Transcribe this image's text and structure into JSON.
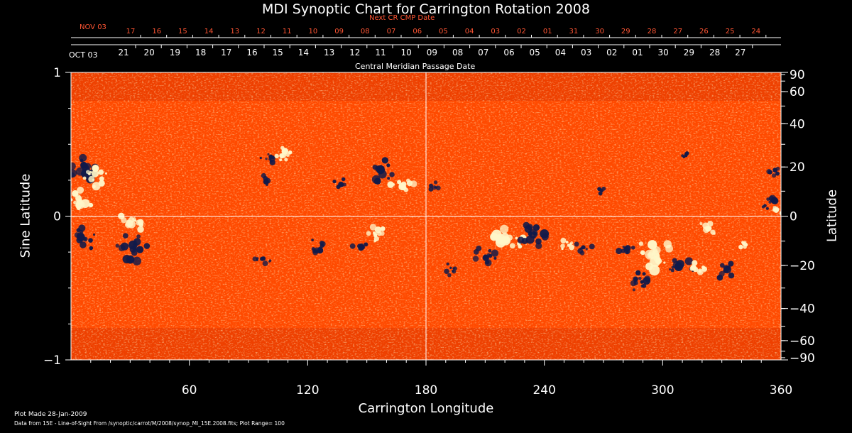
{
  "title": "MDI Synoptic Chart for Carrington Rotation 2008",
  "top_axis": {
    "label": "Next CR CMP Date",
    "start_label": "NOV 03",
    "dates": [
      "17",
      "16",
      "15",
      "14",
      "13",
      "12",
      "11",
      "10",
      "09",
      "08",
      "07",
      "06",
      "05",
      "04",
      "03",
      "02",
      "01",
      "31",
      "30",
      "29",
      "28",
      "27",
      "26",
      "25",
      "24"
    ]
  },
  "bottom_date_axis": {
    "start_label": "OCT 03",
    "label": "Central Meridian Passage Date",
    "dates": [
      "21",
      "20",
      "19",
      "18",
      "17",
      "16",
      "15",
      "14",
      "13",
      "12",
      "11",
      "10",
      "09",
      "08",
      "07",
      "06",
      "05",
      "04",
      "03",
      "02",
      "01",
      "30",
      "29",
      "28",
      "27"
    ]
  },
  "footer": {
    "plot_made": "Plot Made 28-Jan-2009",
    "source": "Data from 15E - Line-of-Sight From /synoptic/carrot/M/2008/synop_Ml_15E.2008.fits; Plot Range= 100"
  },
  "chart_data": {
    "type": "heatmap",
    "title": "MDI Synoptic Chart for Carrington Rotation 2008",
    "xlabel": "Carrington Longitude",
    "ylabel_left": "Sine Latitude",
    "ylabel_right": "Latitude",
    "xlim": [
      0,
      360
    ],
    "ylim": [
      -1,
      1
    ],
    "x_ticks": [
      60,
      120,
      180,
      240,
      300,
      360
    ],
    "y_ticks_left": [
      -1,
      0,
      1
    ],
    "y_ticks_left_labels": [
      "−1",
      "0",
      "1"
    ],
    "y_ticks_right": [
      90,
      60,
      40,
      20,
      0,
      -20,
      -40,
      -60,
      -90
    ],
    "y_ticks_right_labels": [
      "90",
      "60",
      "40",
      "20",
      "0",
      "−20",
      "−40",
      "−60",
      "−90"
    ],
    "reference_lines": {
      "x": 180,
      "y": 0
    },
    "colormap": {
      "background": "#ff4a00",
      "positive": "#fff6c8",
      "negative": "#111a4a"
    },
    "plot_range": 100,
    "regions": [
      {
        "polarity": "negative",
        "lon": 8,
        "sinlat": 0.33,
        "size": 1.2
      },
      {
        "polarity": "positive",
        "lon": 14,
        "sinlat": 0.27,
        "size": 1.0
      },
      {
        "polarity": "positive",
        "lon": 4,
        "sinlat": 0.12,
        "size": 1.1
      },
      {
        "polarity": "negative",
        "lon": 7,
        "sinlat": -0.16,
        "size": 1.0
      },
      {
        "polarity": "negative",
        "lon": 32,
        "sinlat": -0.22,
        "size": 1.3
      },
      {
        "polarity": "positive",
        "lon": 30,
        "sinlat": -0.05,
        "size": 0.9
      },
      {
        "polarity": "negative",
        "lon": 101,
        "sinlat": 0.41,
        "size": 0.7
      },
      {
        "polarity": "positive",
        "lon": 107,
        "sinlat": 0.42,
        "size": 0.8
      },
      {
        "polarity": "negative",
        "lon": 99,
        "sinlat": 0.24,
        "size": 0.6
      },
      {
        "polarity": "negative",
        "lon": 137,
        "sinlat": 0.22,
        "size": 0.6
      },
      {
        "polarity": "negative",
        "lon": 157,
        "sinlat": 0.32,
        "size": 1.1
      },
      {
        "polarity": "positive",
        "lon": 168,
        "sinlat": 0.22,
        "size": 0.8
      },
      {
        "polarity": "negative",
        "lon": 124,
        "sinlat": -0.21,
        "size": 0.7
      },
      {
        "polarity": "negative",
        "lon": 147,
        "sinlat": -0.22,
        "size": 0.6
      },
      {
        "polarity": "positive",
        "lon": 155,
        "sinlat": -0.12,
        "size": 0.8
      },
      {
        "polarity": "negative",
        "lon": 97,
        "sinlat": -0.3,
        "size": 0.6
      },
      {
        "polarity": "negative",
        "lon": 185,
        "sinlat": 0.2,
        "size": 0.5
      },
      {
        "polarity": "negative",
        "lon": 193,
        "sinlat": -0.37,
        "size": 0.6
      },
      {
        "polarity": "negative",
        "lon": 210,
        "sinlat": -0.28,
        "size": 0.9
      },
      {
        "polarity": "positive",
        "lon": 220,
        "sinlat": -0.17,
        "size": 1.3
      },
      {
        "polarity": "negative",
        "lon": 235,
        "sinlat": -0.12,
        "size": 1.2
      },
      {
        "polarity": "positive",
        "lon": 252,
        "sinlat": -0.2,
        "size": 0.6
      },
      {
        "polarity": "negative",
        "lon": 260,
        "sinlat": -0.22,
        "size": 0.6
      },
      {
        "polarity": "negative",
        "lon": 269,
        "sinlat": 0.18,
        "size": 0.4
      },
      {
        "polarity": "negative",
        "lon": 281,
        "sinlat": -0.23,
        "size": 0.7
      },
      {
        "polarity": "positive",
        "lon": 296,
        "sinlat": -0.27,
        "size": 1.4
      },
      {
        "polarity": "negative",
        "lon": 308,
        "sinlat": -0.35,
        "size": 1.1
      },
      {
        "polarity": "negative",
        "lon": 287,
        "sinlat": -0.46,
        "size": 0.9
      },
      {
        "polarity": "positive",
        "lon": 323,
        "sinlat": -0.09,
        "size": 0.7
      },
      {
        "polarity": "negative",
        "lon": 332,
        "sinlat": -0.38,
        "size": 0.8
      },
      {
        "polarity": "positive",
        "lon": 317,
        "sinlat": -0.37,
        "size": 0.7
      },
      {
        "polarity": "positive",
        "lon": 342,
        "sinlat": -0.19,
        "size": 0.5
      },
      {
        "polarity": "negative",
        "lon": 355,
        "sinlat": 0.1,
        "size": 0.8
      },
      {
        "polarity": "positive",
        "lon": 358,
        "sinlat": 0.05,
        "size": 0.6
      },
      {
        "polarity": "negative",
        "lon": 357,
        "sinlat": 0.32,
        "size": 0.5
      },
      {
        "polarity": "negative",
        "lon": 311,
        "sinlat": 0.41,
        "size": 0.4
      }
    ]
  }
}
